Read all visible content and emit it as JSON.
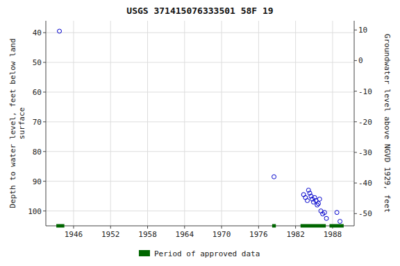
{
  "chart_data": {
    "type": "scatter",
    "title": "USGS 371415076333501 58F 19",
    "y_label": "Depth to water level, feet below land\nsurface",
    "y2_label": "Groundwater level above NGVD 1929, feet",
    "xlim": [
      1941.5,
      1991.5
    ],
    "xticks": [
      1946,
      1952,
      1958,
      1964,
      1970,
      1976,
      1982,
      1988
    ],
    "ylim": [
      105,
      36
    ],
    "yticks": [
      40,
      50,
      60,
      70,
      80,
      90,
      100
    ],
    "y2lim": [
      -54,
      13
    ],
    "y2ticks": [
      10,
      0,
      -10,
      -20,
      -30,
      -40,
      -50
    ],
    "grid": true,
    "legend": "bottom",
    "series": [
      {
        "type": "scatter",
        "marker": "circle",
        "color": "#0000cc",
        "x": [
          1943.7,
          1978.5,
          1983.3,
          1983.6,
          1983.9,
          1984.1,
          1984.3,
          1984.5,
          1984.7,
          1984.9,
          1985.1,
          1985.3,
          1985.5,
          1985.7,
          1985.9,
          1986.1,
          1986.4,
          1986.7,
          1987.0,
          1988.7,
          1989.2
        ],
        "values": [
          39.5,
          88.5,
          94.5,
          95.5,
          96.5,
          93.0,
          94.0,
          95.0,
          96.0,
          97.0,
          95.5,
          96.5,
          98.0,
          97.5,
          96.0,
          100.0,
          101.0,
          100.5,
          102.5,
          100.5,
          103.5
        ]
      },
      {
        "type": "span",
        "name": "Period of approved data",
        "color": "#006600",
        "x_start": [
          1943.2,
          1978.2,
          1982.8,
          1987.5
        ],
        "x_end": [
          1944.5,
          1978.8,
          1986.9,
          1989.8
        ]
      }
    ]
  }
}
